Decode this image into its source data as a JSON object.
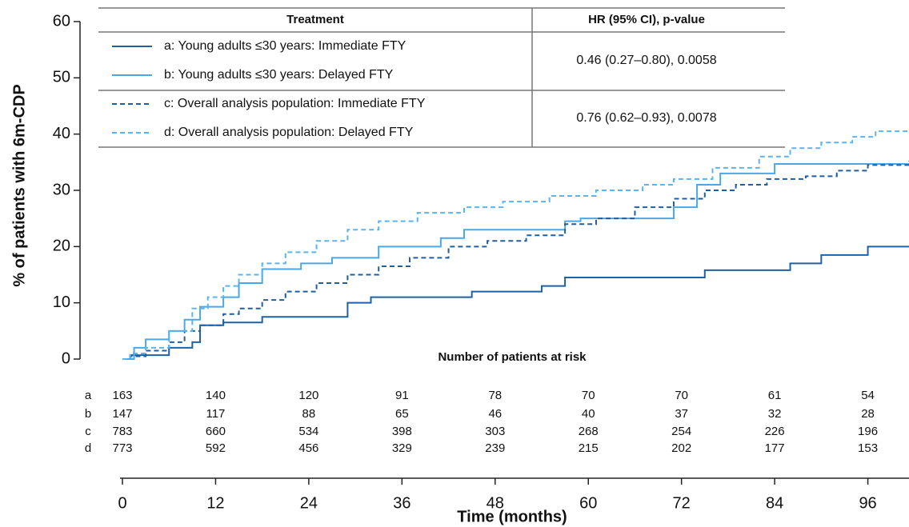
{
  "chart_data": {
    "type": "line",
    "step": true,
    "ylabel": "% of patients with 6m-CDP",
    "xlabel": "Time (months)",
    "xlim": [
      0,
      101.3
    ],
    "ylim": [
      0,
      60
    ],
    "xticks": [
      0,
      12,
      24,
      36,
      48,
      60,
      72,
      84,
      96
    ],
    "yticks": [
      0,
      10,
      20,
      30,
      40,
      50,
      60
    ],
    "legend_headers": [
      "Treatment",
      "HR (95% CI), p-value"
    ],
    "hr_values": [
      "0.46 (0.27–0.80), 0.0058",
      "0.76 (0.62–0.93), 0.0078"
    ],
    "series": [
      {
        "name": "a: Young adults ≤30 years: Immediate FTY",
        "color": "#1f62a3",
        "dash": "solid",
        "x": [
          0,
          1,
          6,
          9,
          10,
          13,
          18,
          29,
          32,
          45,
          54,
          57,
          75,
          86,
          90,
          96,
          101.3
        ],
        "values": [
          0,
          0.7,
          2,
          3,
          6,
          6.5,
          7.5,
          10,
          11,
          12,
          13,
          14.5,
          15.8,
          17,
          18.5,
          20,
          20
        ]
      },
      {
        "name": "b: Young adults ≤30 years: Delayed FTY",
        "color": "#4aa8e8",
        "dash": "solid",
        "x": [
          0,
          1.5,
          3,
          6,
          8,
          10,
          13,
          15,
          18,
          23,
          27,
          33,
          41,
          44,
          57,
          59,
          71,
          74,
          77,
          84,
          101.3
        ],
        "values": [
          0,
          2,
          3.5,
          5,
          7,
          9.3,
          11,
          13.5,
          16,
          17,
          18,
          20,
          21.5,
          23,
          24.5,
          25,
          27,
          31,
          33,
          34.7,
          34.7
        ]
      },
      {
        "name": "c: Overall analysis population: Immediate FTY",
        "color": "#1f5f9e",
        "dash": "dashed",
        "x": [
          0,
          1,
          3,
          6,
          8,
          10,
          13,
          15,
          18,
          21,
          25,
          29,
          33,
          37,
          42,
          47,
          52,
          57,
          61,
          66,
          71,
          75,
          79,
          83,
          88,
          92,
          96,
          101.3
        ],
        "values": [
          0,
          0.5,
          1.5,
          3,
          5,
          6,
          8,
          9,
          10.5,
          12,
          13.5,
          15,
          16.5,
          18,
          20,
          21,
          22,
          24,
          25,
          27,
          28.5,
          30,
          31,
          32,
          32.5,
          33.5,
          34.5,
          35.2
        ]
      },
      {
        "name": "d: Overall analysis population: Delayed FTY",
        "color": "#5ab4ee",
        "dash": "dashed",
        "x": [
          0,
          1,
          3,
          6,
          9,
          11,
          13,
          15,
          18,
          21,
          25,
          29,
          33,
          38,
          44,
          49,
          55,
          61,
          67,
          71,
          76,
          82,
          86,
          90,
          94,
          97,
          101.3
        ],
        "values": [
          0,
          1,
          2,
          5,
          9,
          11,
          13,
          15,
          17,
          19,
          21,
          23,
          24.5,
          26,
          27,
          28,
          29,
          30,
          31,
          32,
          34,
          36,
          37.5,
          38.5,
          39.5,
          40.5,
          40.5
        ]
      }
    ],
    "risk_title": "Number of patients at risk",
    "risk_labels": [
      "a",
      "b",
      "c",
      "d"
    ],
    "risk_counts": [
      [
        163,
        140,
        120,
        91,
        78,
        70,
        70,
        61,
        54
      ],
      [
        147,
        117,
        88,
        65,
        46,
        40,
        37,
        32,
        28
      ],
      [
        783,
        660,
        534,
        398,
        303,
        268,
        254,
        226,
        196
      ],
      [
        773,
        592,
        456,
        329,
        239,
        215,
        202,
        177,
        153
      ]
    ]
  }
}
